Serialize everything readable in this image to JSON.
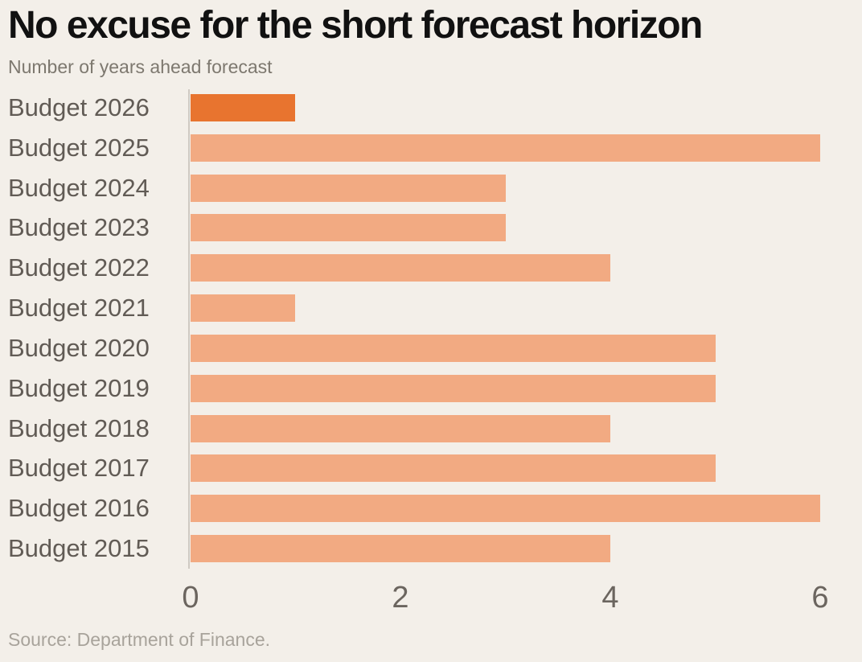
{
  "title": "No excuse for the short forecast horizon",
  "subtitle": "Number of years ahead forecast",
  "source": "Source: Department of Finance.",
  "chart_data": {
    "type": "bar",
    "orientation": "horizontal",
    "title": "No excuse for the short forecast horizon",
    "subtitle": "Number of years ahead forecast",
    "categories": [
      "Budget 2026",
      "Budget 2025",
      "Budget 2024",
      "Budget 2023",
      "Budget 2022",
      "Budget 2021",
      "Budget 2020",
      "Budget 2019",
      "Budget 2018",
      "Budget 2017",
      "Budget 2016",
      "Budget 2015"
    ],
    "values": [
      1,
      6,
      3,
      3,
      4,
      1,
      5,
      5,
      4,
      5,
      6,
      4
    ],
    "highlight_index": 0,
    "xlabel": "",
    "ylabel": "",
    "xlim": [
      0,
      6
    ],
    "xticks": [
      0,
      2,
      4,
      6
    ],
    "grid": false,
    "legend": "none",
    "colors": {
      "background": "#F3EFE9",
      "bar": "#F2AA82",
      "bar_highlight": "#E8742F",
      "axis_line": "#CFCAC3",
      "category_label": "#615B55",
      "tick_label": "#6B655F",
      "subtitle": "#7D786F",
      "source": "#A8A39B",
      "title": "#111111"
    }
  }
}
